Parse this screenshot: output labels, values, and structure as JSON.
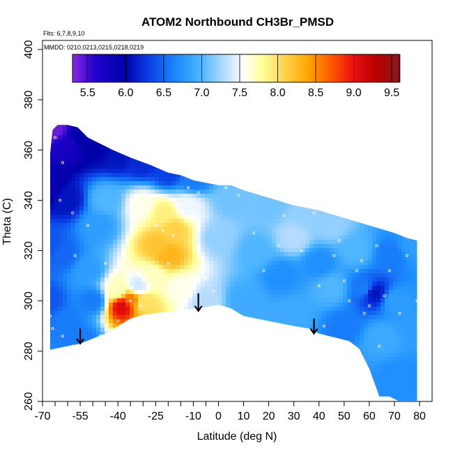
{
  "chart_data": {
    "type": "heatmap",
    "title": "ATOM2 Northbound CH3Br_PMSD",
    "flights_text": "Flts: 6,7,8,9,10",
    "dates_text": "MMDD: 0210,0213,0215,0218,0219",
    "xlabel": "Latitude (deg N)",
    "ylabel": "Theta (C)",
    "xlim": [
      -70,
      80
    ],
    "ylim": [
      260,
      400
    ],
    "x_ticks": [
      -70,
      -55,
      -40,
      -25,
      -10,
      0,
      10,
      20,
      30,
      40,
      50,
      60,
      70,
      80
    ],
    "x_tick_labels": [
      "-70",
      "-55",
      "-40",
      "-25",
      "-10",
      "0",
      "10",
      "20",
      "30",
      "40",
      "50",
      "60",
      "70",
      "80"
    ],
    "x_minor_ticks": [
      -65,
      -60,
      -50,
      -45,
      -35,
      -30,
      -20,
      -15,
      -5
    ],
    "y_ticks": [
      260,
      280,
      300,
      320,
      340,
      360,
      380,
      400
    ],
    "y_tick_labels": [
      "260",
      "280",
      "300",
      "320",
      "340",
      "360",
      "380",
      "400"
    ],
    "colorbar": {
      "min": 5.3,
      "max": 9.6,
      "ticks": [
        5.5,
        6.0,
        6.5,
        7.0,
        7.5,
        8.0,
        8.5,
        9.0,
        9.5
      ],
      "tick_labels": [
        "5.5",
        "6.0",
        "6.5",
        "7.0",
        "7.5",
        "8.0",
        "8.5",
        "9.0",
        "9.5"
      ],
      "stops": [
        {
          "v": 5.3,
          "color": "#8a2be2"
        },
        {
          "v": 5.6,
          "color": "#2200cc"
        },
        {
          "v": 6.0,
          "color": "#0000a8"
        },
        {
          "v": 6.3,
          "color": "#0a3fe6"
        },
        {
          "v": 6.7,
          "color": "#1e90ff"
        },
        {
          "v": 7.0,
          "color": "#4fb6ff"
        },
        {
          "v": 7.3,
          "color": "#b5dcff"
        },
        {
          "v": 7.55,
          "color": "#ffffff"
        },
        {
          "v": 7.8,
          "color": "#ffff9a"
        },
        {
          "v": 8.1,
          "color": "#ffd24a"
        },
        {
          "v": 8.4,
          "color": "#ffa500"
        },
        {
          "v": 8.7,
          "color": "#ff5a00"
        },
        {
          "v": 9.0,
          "color": "#e81010"
        },
        {
          "v": 9.3,
          "color": "#b80000"
        },
        {
          "v": 9.6,
          "color": "#8b1a1a"
        }
      ]
    },
    "domain_top": [
      [
        -69,
        339
      ],
      [
        -68,
        347
      ],
      [
        -67,
        358
      ],
      [
        -66,
        368
      ],
      [
        -64,
        370
      ],
      [
        -60,
        370
      ],
      [
        -56,
        369
      ],
      [
        -52,
        365
      ],
      [
        -48,
        363
      ],
      [
        -42,
        360
      ],
      [
        -35,
        357
      ],
      [
        -27,
        354
      ],
      [
        -20,
        351
      ],
      [
        -15,
        350
      ],
      [
        -10,
        348
      ],
      [
        -5,
        347
      ],
      [
        0,
        346
      ],
      [
        5,
        346
      ],
      [
        10,
        344
      ],
      [
        20,
        341
      ],
      [
        30,
        338
      ],
      [
        40,
        336
      ],
      [
        50,
        333
      ],
      [
        60,
        330
      ],
      [
        70,
        327
      ],
      [
        75,
        325
      ],
      [
        79,
        324
      ]
    ],
    "domain_bottom": [
      [
        79,
        260
      ],
      [
        76,
        260
      ],
      [
        72,
        260
      ],
      [
        68,
        262
      ],
      [
        64,
        262
      ],
      [
        60,
        273
      ],
      [
        56,
        281
      ],
      [
        52,
        284
      ],
      [
        48,
        285
      ],
      [
        44,
        286
      ],
      [
        40,
        287
      ],
      [
        36,
        289
      ],
      [
        30,
        290
      ],
      [
        20,
        292
      ],
      [
        10,
        294
      ],
      [
        5,
        297
      ],
      [
        0,
        298.5
      ],
      [
        -5,
        297.5
      ],
      [
        -10,
        297
      ],
      [
        -15,
        296
      ],
      [
        -22,
        295.5
      ],
      [
        -30,
        294.5
      ],
      [
        -35,
        293
      ],
      [
        -40,
        290
      ],
      [
        -45,
        287
      ],
      [
        -50,
        285
      ],
      [
        -55,
        283
      ],
      [
        -60,
        282
      ],
      [
        -65,
        281
      ],
      [
        -69,
        280
      ]
    ],
    "field_points": [
      {
        "x": -65,
        "y": 368,
        "v": 5.4
      },
      {
        "x": -60,
        "y": 362,
        "v": 5.7
      },
      {
        "x": -68,
        "y": 345,
        "v": 5.9
      },
      {
        "x": -55,
        "y": 365,
        "v": 6.0
      },
      {
        "x": -48,
        "y": 361,
        "v": 6.0
      },
      {
        "x": -40,
        "y": 358,
        "v": 6.1
      },
      {
        "x": -30,
        "y": 355,
        "v": 6.2
      },
      {
        "x": -20,
        "y": 351,
        "v": 6.3
      },
      {
        "x": -10,
        "y": 348,
        "v": 6.6
      },
      {
        "x": -60,
        "y": 340,
        "v": 6.1
      },
      {
        "x": -68,
        "y": 322,
        "v": 6.4
      },
      {
        "x": -62,
        "y": 318,
        "v": 6.5
      },
      {
        "x": -68,
        "y": 300,
        "v": 6.4
      },
      {
        "x": -60,
        "y": 292,
        "v": 6.6
      },
      {
        "x": -50,
        "y": 300,
        "v": 6.6
      },
      {
        "x": -55,
        "y": 285,
        "v": 6.6
      },
      {
        "x": -48,
        "y": 330,
        "v": 6.8
      },
      {
        "x": -52,
        "y": 312,
        "v": 6.8
      },
      {
        "x": -45,
        "y": 340,
        "v": 7.0
      },
      {
        "x": -38,
        "y": 298,
        "v": 9.1
      },
      {
        "x": -35,
        "y": 300,
        "v": 8.6
      },
      {
        "x": -40,
        "y": 304,
        "v": 7.7
      },
      {
        "x": -30,
        "y": 299,
        "v": 8.0
      },
      {
        "x": -32,
        "y": 306,
        "v": 7.4
      },
      {
        "x": -24,
        "y": 322,
        "v": 8.2
      },
      {
        "x": -20,
        "y": 318,
        "v": 8.3
      },
      {
        "x": -18,
        "y": 328,
        "v": 8.1
      },
      {
        "x": -22,
        "y": 335,
        "v": 7.9
      },
      {
        "x": -30,
        "y": 338,
        "v": 7.6
      },
      {
        "x": -26,
        "y": 310,
        "v": 7.7
      },
      {
        "x": -15,
        "y": 305,
        "v": 7.6
      },
      {
        "x": -12,
        "y": 338,
        "v": 7.5
      },
      {
        "x": -5,
        "y": 300,
        "v": 7.3
      },
      {
        "x": 0,
        "y": 325,
        "v": 7.2
      },
      {
        "x": 5,
        "y": 340,
        "v": 7.1
      },
      {
        "x": 10,
        "y": 300,
        "v": 6.9
      },
      {
        "x": 15,
        "y": 320,
        "v": 7.0
      },
      {
        "x": 20,
        "y": 338,
        "v": 7.1
      },
      {
        "x": 25,
        "y": 310,
        "v": 6.7
      },
      {
        "x": 30,
        "y": 325,
        "v": 7.3
      },
      {
        "x": 30,
        "y": 295,
        "v": 6.9
      },
      {
        "x": 35,
        "y": 335,
        "v": 7.2
      },
      {
        "x": 40,
        "y": 315,
        "v": 6.7
      },
      {
        "x": 45,
        "y": 305,
        "v": 7.0
      },
      {
        "x": 45,
        "y": 330,
        "v": 7.2
      },
      {
        "x": 50,
        "y": 290,
        "v": 6.6
      },
      {
        "x": 55,
        "y": 320,
        "v": 7.0
      },
      {
        "x": 58,
        "y": 305,
        "v": 6.6
      },
      {
        "x": 62,
        "y": 303,
        "v": 6.1
      },
      {
        "x": 65,
        "y": 285,
        "v": 6.9
      },
      {
        "x": 68,
        "y": 318,
        "v": 6.6
      },
      {
        "x": 70,
        "y": 300,
        "v": 6.8
      },
      {
        "x": 72,
        "y": 270,
        "v": 6.7
      },
      {
        "x": 78,
        "y": 322,
        "v": 6.8
      },
      {
        "x": 78,
        "y": 290,
        "v": 6.8
      }
    ],
    "obs_points": [
      [
        -63,
        340
      ],
      [
        -62,
        355
      ],
      [
        -65,
        365
      ],
      [
        -58,
        335
      ],
      [
        -52,
        330
      ],
      [
        -57,
        318
      ],
      [
        -67,
        294
      ],
      [
        -66,
        289
      ],
      [
        -62,
        286
      ],
      [
        -58,
        282
      ],
      [
        -47,
        286
      ],
      [
        -40,
        292
      ],
      [
        -45,
        315
      ],
      [
        -42,
        301
      ],
      [
        -35,
        300
      ],
      [
        -31,
        298
      ],
      [
        -25,
        330
      ],
      [
        -22,
        328
      ],
      [
        -20,
        315
      ],
      [
        -18,
        326
      ],
      [
        -12,
        345
      ],
      [
        -8,
        343
      ],
      [
        -5,
        309
      ],
      [
        -2,
        304
      ],
      [
        3,
        345
      ],
      [
        8,
        342
      ],
      [
        14,
        327
      ],
      [
        18,
        312
      ],
      [
        24,
        322
      ],
      [
        26,
        334
      ],
      [
        33,
        320
      ],
      [
        38,
        335
      ],
      [
        40,
        306
      ],
      [
        46,
        318
      ],
      [
        48,
        324
      ],
      [
        50,
        308
      ],
      [
        52,
        300
      ],
      [
        55,
        312
      ],
      [
        57,
        316
      ],
      [
        60,
        298
      ],
      [
        63,
        322
      ],
      [
        66,
        302
      ],
      [
        68,
        312
      ],
      [
        72,
        295
      ],
      [
        75,
        318
      ],
      [
        79,
        300
      ],
      [
        64,
        282
      ],
      [
        58,
        295
      ],
      [
        42,
        290
      ],
      [
        30,
        288
      ]
    ],
    "arrows": [
      {
        "x": -55,
        "y_tip": 283,
        "y_tail": 289
      },
      {
        "x": -8,
        "y_tip": 296,
        "y_tail": 303
      },
      {
        "x": 38,
        "y_tip": 287,
        "y_tail": 293
      }
    ]
  }
}
